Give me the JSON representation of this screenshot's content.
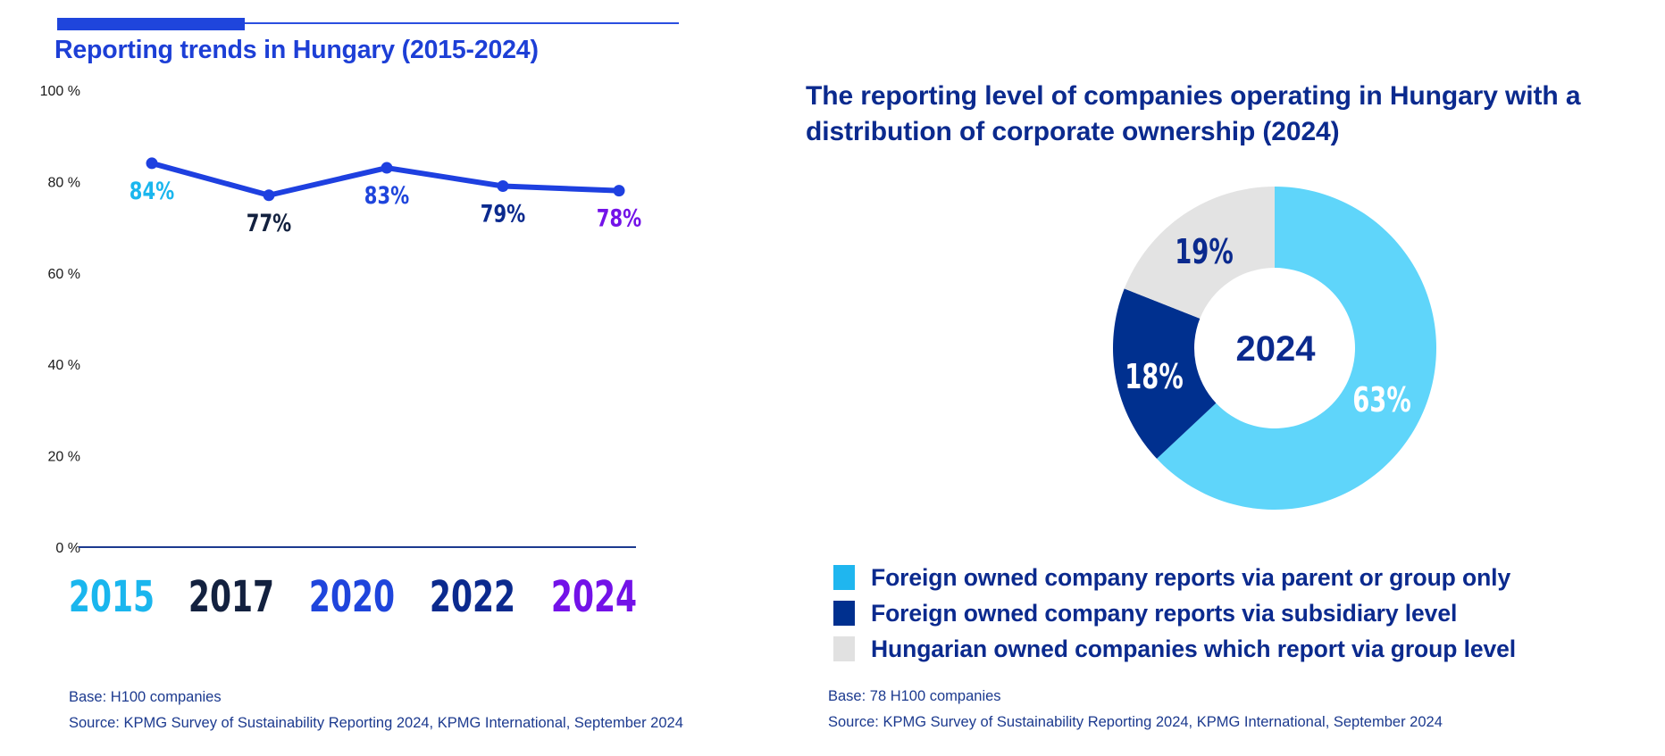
{
  "left_panel": {
    "title": "Reporting trends in Hungary (2015-2024)",
    "footer_base": "Base: H100 companies",
    "footer_source": "Source: KPMG Survey of Sustainability Reporting 2024, KPMG International, September 2024"
  },
  "right_panel": {
    "title": "The reporting level of companies operating in Hungary with a distribution of corporate ownership (2024)",
    "center_label": "2024",
    "footer_base": "Base: 78 H100 companies",
    "footer_source": "Source: KPMG Survey of Sustainability Reporting 2024, KPMG International, September 2024"
  },
  "colors": {
    "accent_blue": "#1f45dc",
    "navy": "#0b2a8e",
    "line": "#1e40e0"
  },
  "chart_data": [
    {
      "type": "line",
      "title": "Reporting trends in Hungary (2015-2024)",
      "xlabel": "",
      "ylabel": "",
      "categories": [
        "2015",
        "2017",
        "2020",
        "2022",
        "2024"
      ],
      "values": [
        84,
        77,
        83,
        79,
        78
      ],
      "data_labels": [
        "84%",
        "77%",
        "83%",
        "79%",
        "78%"
      ],
      "category_colors": [
        "#1ab6ee",
        "#13213f",
        "#1f45dc",
        "#0b2a8e",
        "#7312e8"
      ],
      "ylim": [
        0,
        100
      ],
      "yticks": [
        0,
        20,
        40,
        60,
        80,
        100
      ],
      "ytick_labels": [
        "0 %",
        "20 %",
        "40 %",
        "60 %",
        "80 %",
        "100 %"
      ],
      "grid": false,
      "legend": "none"
    },
    {
      "type": "pie",
      "variant": "donut",
      "title": "The reporting level of companies operating in Hungary with a distribution of corporate ownership (2024)",
      "center_label": "2024",
      "slices": [
        {
          "label": "Foreign owned company reports via parent or group only",
          "value": 63,
          "display": "63%",
          "color": "#5fd5fa",
          "legend_color": "#1fb6ef",
          "label_color": "#ffffff"
        },
        {
          "label": "Foreign owned company reports via subsidiary level",
          "value": 18,
          "display": "18%",
          "color": "#00308f",
          "legend_color": "#00308f",
          "label_color": "#ffffff"
        },
        {
          "label": "Hungarian owned companies which report via group level",
          "value": 19,
          "display": "19%",
          "color": "#e3e3e3",
          "legend_color": "#e1e1e1",
          "label_color": "#0b2a8e"
        }
      ],
      "legend": "bottom"
    }
  ]
}
